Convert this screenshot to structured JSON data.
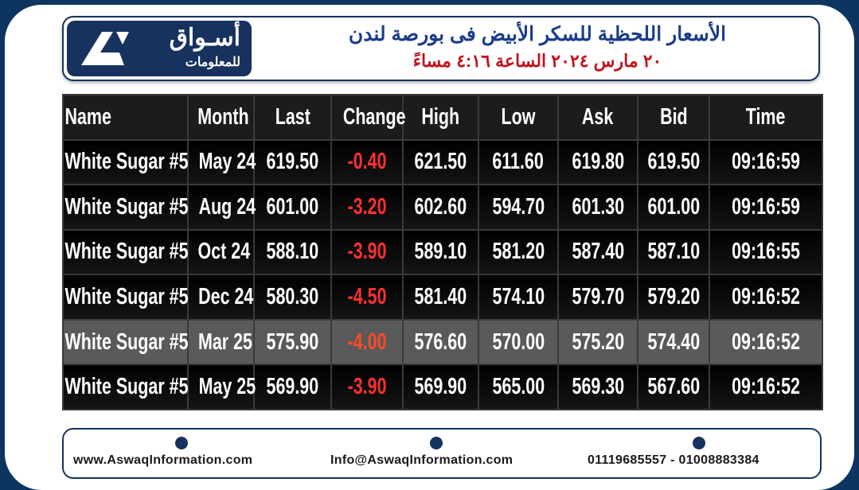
{
  "header": {
    "logo_ar": "أسـواق",
    "logo_sub": "للمعلومات",
    "title": "الأسعار اللحظية للسكر الأبيض فى بورصة لندن",
    "subtitle": "٢٠ مارس ٢٠٢٤ الساعة ٤:١٦ مساءً"
  },
  "table": {
    "columns": [
      "Name",
      "Month",
      "Last",
      "Change",
      "High",
      "Low",
      "Ask",
      "Bid",
      "Time"
    ],
    "rows": [
      [
        "White Sugar #5",
        "May 24",
        "619.50",
        "-0.40",
        "621.50",
        "611.60",
        "619.80",
        "619.50",
        "09:16:59"
      ],
      [
        "White Sugar #5",
        "Aug 24",
        "601.00",
        "-3.20",
        "602.60",
        "594.70",
        "601.30",
        "601.00",
        "09:16:59"
      ],
      [
        "White Sugar #5",
        "Oct 24",
        "588.10",
        "-3.90",
        "589.10",
        "581.20",
        "587.40",
        "587.10",
        "09:16:55"
      ],
      [
        "White Sugar #5",
        "Dec 24",
        "580.30",
        "-4.50",
        "581.40",
        "574.10",
        "579.70",
        "579.20",
        "09:16:52"
      ],
      [
        "White Sugar #5",
        "Mar 25",
        "575.90",
        "-4.00",
        "576.60",
        "570.00",
        "575.20",
        "574.40",
        "09:16:52"
      ],
      [
        "White Sugar #5",
        "May 25",
        "569.90",
        "-3.90",
        "569.90",
        "565.00",
        "569.30",
        "567.60",
        "09:16:52"
      ]
    ]
  },
  "footer": {
    "website": "www.AswaqInformation.com",
    "email": "Info@AswaqInformation.com",
    "phone": "01119685557 - 01008883384"
  }
}
